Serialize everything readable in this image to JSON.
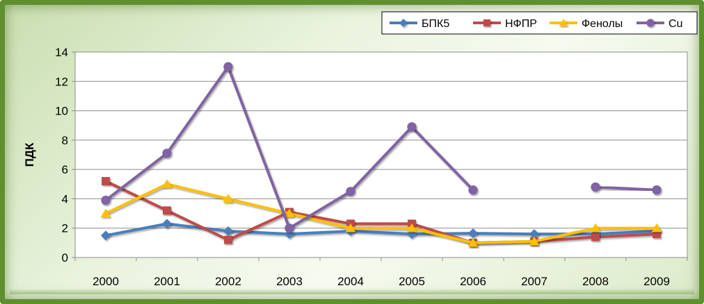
{
  "chart_data": {
    "type": "line",
    "title": "",
    "xlabel": "",
    "ylabel": "ПДК",
    "ylim": [
      0,
      14
    ],
    "yticks": [
      0,
      2,
      4,
      6,
      8,
      10,
      12,
      14
    ],
    "grid": "horizontal",
    "legend_position": "top-right",
    "categories": [
      "2000",
      "2001",
      "2002",
      "2003",
      "2004",
      "2005",
      "2006",
      "2007",
      "2008",
      "2009"
    ],
    "series": [
      {
        "name": "БПК5",
        "color": "#4a7ebb",
        "marker": "diamond",
        "values": [
          1.5,
          2.3,
          1.8,
          1.6,
          1.8,
          1.6,
          1.65,
          1.6,
          1.6,
          1.8
        ]
      },
      {
        "name": "НФПР",
        "color": "#be4b48",
        "marker": "square",
        "values": [
          5.2,
          3.2,
          1.2,
          3.1,
          2.3,
          2.3,
          1.0,
          1.1,
          1.4,
          1.6
        ]
      },
      {
        "name": "Фенолы",
        "color": "#ffc000",
        "marker": "triangle",
        "values": [
          3.0,
          5.0,
          4.0,
          3.0,
          2.0,
          2.0,
          1.0,
          1.1,
          2.0,
          2.0
        ]
      },
      {
        "name": "Cu",
        "color": "#8064a2",
        "marker": "circle",
        "values": [
          3.9,
          7.1,
          13.0,
          2.0,
          4.5,
          8.9,
          4.6,
          null,
          4.8,
          4.6
        ]
      }
    ]
  }
}
